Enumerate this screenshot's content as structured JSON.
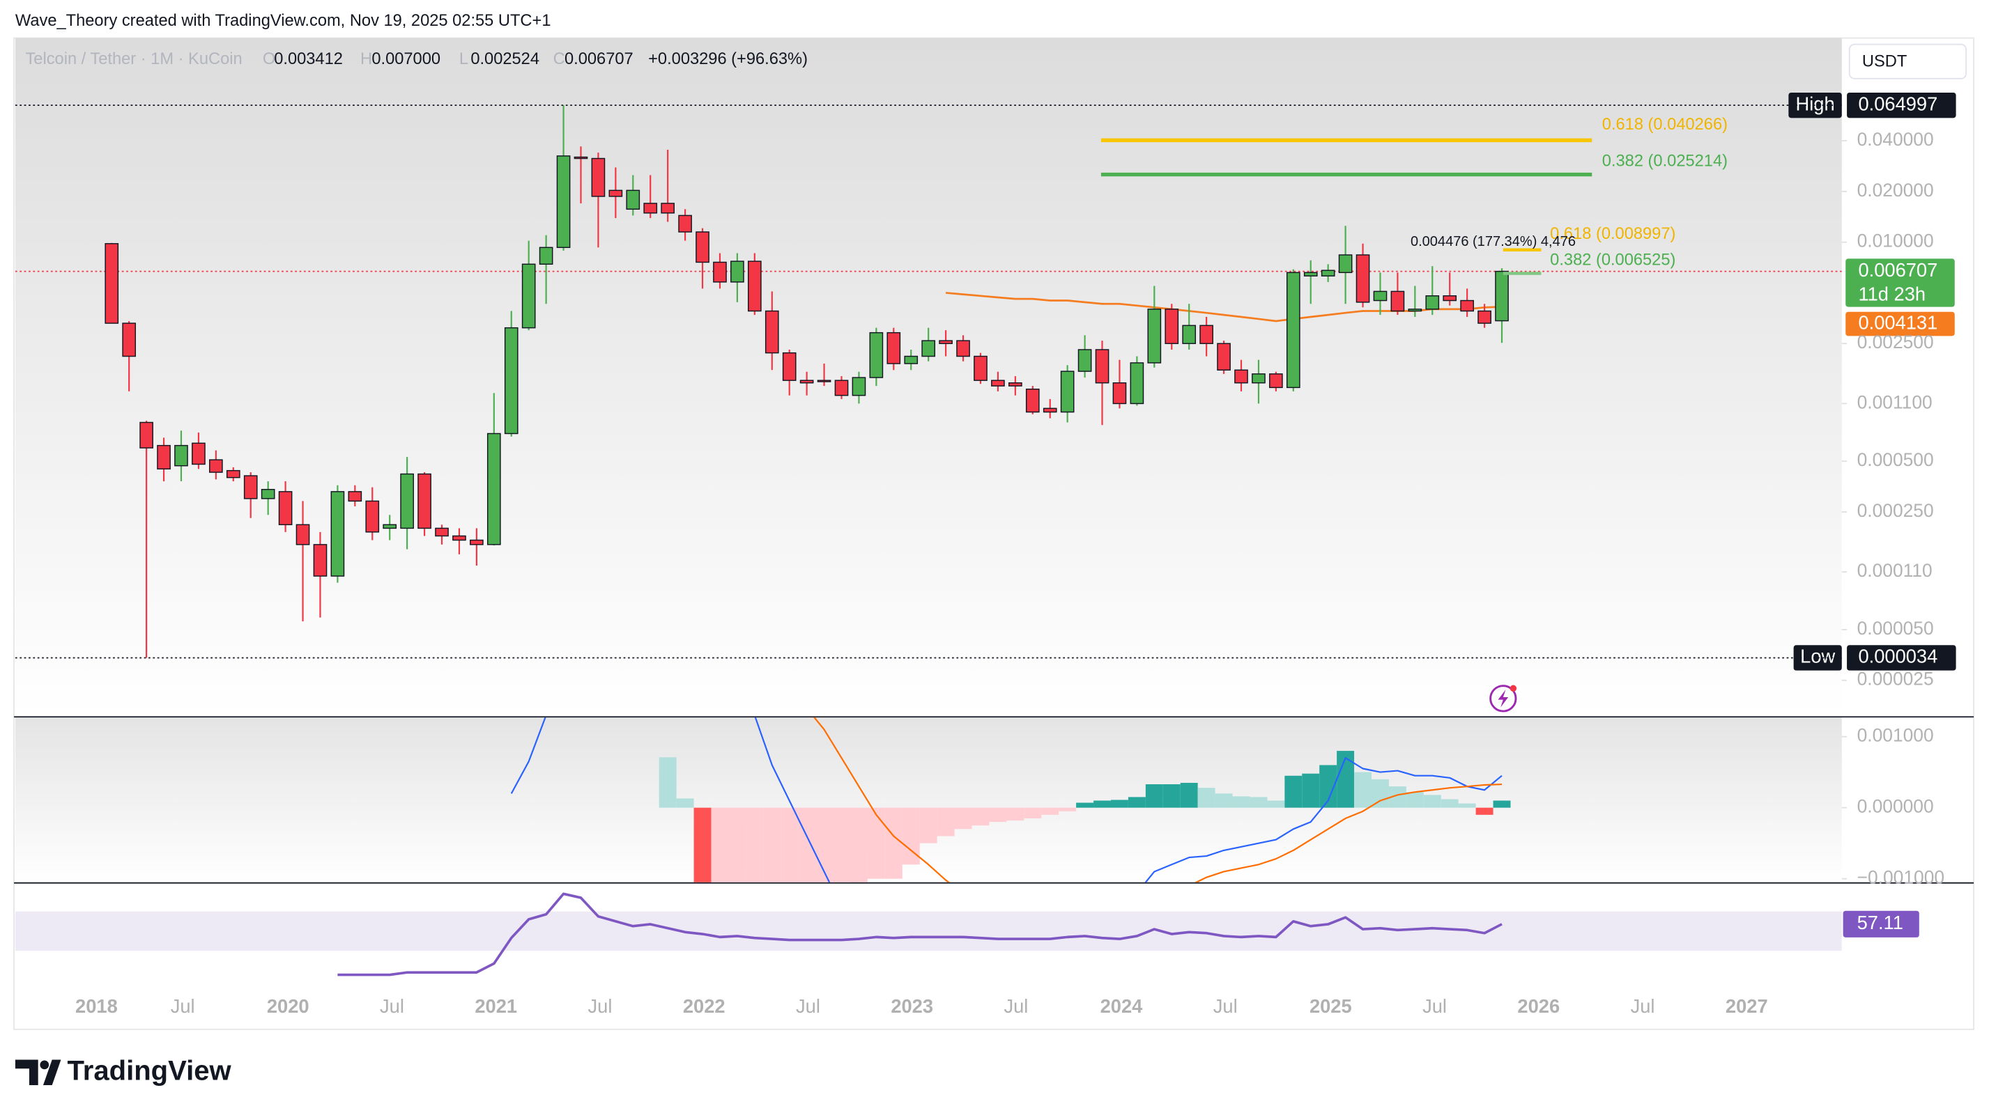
{
  "chart_data": {
    "type": "candlestick",
    "log_scale": true,
    "grid": false,
    "watermark": "Wave_Theory created with TradingView.com, Nov 19, 2025 02:55 UTC+1",
    "legend": {
      "symbol": "Telcoin / Tether · 1M · KuCoin",
      "o_label": "O",
      "o": "0.003412",
      "h_label": "H",
      "h": "0.007000",
      "l_label": "L",
      "l": "0.002524",
      "c_label": "C",
      "c": "0.006707",
      "change": "+0.003296 (+96.63%)"
    },
    "currency": "USDT",
    "up_color": "#4caf50",
    "down_color": "#f23645",
    "open": [
      0.0098,
      0.0033,
      0.00085,
      0.00062,
      0.00047,
      0.00064,
      0.00051,
      0.00044,
      0.00041,
      0.0003,
      0.00033,
      0.00021,
      0.00016,
      0.000104,
      0.00033,
      0.00029,
      0.0002,
      0.0002,
      0.00042,
      0.0002,
      0.00018,
      0.00017,
      0.00016,
      0.00073,
      0.0031,
      0.0074,
      0.0093,
      0.032,
      0.0314,
      0.0203,
      0.0157,
      0.017,
      0.017,
      0.0144,
      0.0115,
      0.0076,
      0.0058,
      0.0077,
      0.0039,
      0.0022,
      0.00151,
      0.00151,
      0.00151,
      0.00123,
      0.00157,
      0.0029,
      0.0019,
      0.0021,
      0.0026,
      0.0026,
      0.0021,
      0.00151,
      0.00146,
      0.00134,
      0.00103,
      0.00098,
      0.00171,
      0.0023,
      0.00146,
      0.0011,
      0.00192,
      0.004,
      0.0025,
      0.0032,
      0.0025,
      0.00174,
      0.00146,
      0.00165,
      0.00137,
      0.0063,
      0.0063,
      0.0066,
      0.0084,
      0.0045,
      0.0051,
      0.0039,
      0.004,
      0.0048,
      0.0045,
      0.0039,
      0.003412
    ],
    "high": [
      0.0099,
      0.0034,
      0.00087,
      0.00069,
      0.00076,
      0.00074,
      0.00058,
      0.00046,
      0.00043,
      0.00038,
      0.00038,
      0.00029,
      0.00019,
      0.00036,
      0.00036,
      0.00035,
      0.00024,
      0.00053,
      0.00043,
      0.00021,
      0.0002,
      0.0002,
      0.00127,
      0.0039,
      0.0102,
      0.011,
      0.064997,
      0.037,
      0.034,
      0.0278,
      0.025,
      0.025,
      0.0354,
      0.0157,
      0.0121,
      0.0086,
      0.0086,
      0.0086,
      0.0051,
      0.0023,
      0.0017,
      0.0019,
      0.0016,
      0.0017,
      0.0031,
      0.0031,
      0.0023,
      0.0031,
      0.003,
      0.0028,
      0.0022,
      0.0017,
      0.0016,
      0.0014,
      0.00117,
      0.00186,
      0.0028,
      0.0026,
      0.002,
      0.0021,
      0.0055,
      0.0043,
      0.0043,
      0.0036,
      0.0026,
      0.002,
      0.002,
      0.0017,
      0.0069,
      0.0078,
      0.0074,
      0.0125,
      0.0098,
      0.0066,
      0.0066,
      0.0055,
      0.0072,
      0.0066,
      0.0053,
      0.0043,
      0.007
    ],
    "low": [
      0.0033,
      0.0013,
      3.4e-05,
      0.00038,
      0.00038,
      0.00045,
      0.00039,
      0.00038,
      0.00023,
      0.00024,
      0.00019,
      5.6e-05,
      5.9e-05,
      9.5e-05,
      0.00027,
      0.00017,
      0.00017,
      0.00015,
      0.00018,
      0.00016,
      0.00014,
      0.00012,
      0.000158,
      0.0007,
      0.003,
      0.0043,
      0.0089,
      0.017,
      0.0093,
      0.0139,
      0.0144,
      0.0139,
      0.0132,
      0.0102,
      0.0053,
      0.0053,
      0.0044,
      0.0037,
      0.00174,
      0.00123,
      0.00123,
      0.0014,
      0.00117,
      0.0011,
      0.0014,
      0.00174,
      0.00174,
      0.00196,
      0.0021,
      0.00196,
      0.00144,
      0.0013,
      0.00123,
      0.00095,
      0.0009,
      0.00085,
      0.00157,
      0.00082,
      0.00103,
      0.00107,
      0.0018,
      0.0023,
      0.0023,
      0.0021,
      0.00165,
      0.0013,
      0.0011,
      0.0013,
      0.0013,
      0.0043,
      0.0058,
      0.0043,
      0.0041,
      0.0037,
      0.0037,
      0.0036,
      0.0037,
      0.0042,
      0.0036,
      0.0031,
      0.002524
    ],
    "close": [
      0.0033,
      0.0021,
      0.0006,
      0.00045,
      0.00062,
      0.00048,
      0.00043,
      0.0004,
      0.0003,
      0.00034,
      0.00021,
      0.00016,
      0.000104,
      0.00033,
      0.00029,
      0.00019,
      0.00021,
      0.00042,
      0.0002,
      0.00018,
      0.00017,
      0.00016,
      0.00073,
      0.0031,
      0.0074,
      0.0093,
      0.0325,
      0.0314,
      0.0187,
      0.0187,
      0.0203,
      0.0149,
      0.0149,
      0.0115,
      0.0076,
      0.0058,
      0.0077,
      0.0039,
      0.0022,
      0.00151,
      0.00146,
      0.00149,
      0.00123,
      0.00157,
      0.0029,
      0.0019,
      0.0021,
      0.0026,
      0.0025,
      0.0021,
      0.00151,
      0.0014,
      0.0014,
      0.00098,
      0.00098,
      0.00171,
      0.0023,
      0.00146,
      0.0011,
      0.00192,
      0.004,
      0.0025,
      0.0032,
      0.0025,
      0.00174,
      0.00146,
      0.00165,
      0.00137,
      0.0066,
      0.0066,
      0.0068,
      0.0084,
      0.0044,
      0.0051,
      0.0039,
      0.004,
      0.0048,
      0.0045,
      0.0039,
      0.0033,
      0.006707
    ],
    "countdown": "11d 23h",
    "ylim": [
      1.53e-05,
      0.163
    ],
    "yticks": [
      {
        "value": 0.04,
        "label": "0.040000"
      },
      {
        "value": 0.02,
        "label": "0.020000"
      },
      {
        "value": 0.01,
        "label": "0.010000"
      },
      {
        "value": 0.0025,
        "label": "0.002500"
      },
      {
        "value": 0.0011,
        "label": "0.001100"
      },
      {
        "value": 0.0005,
        "label": "0.000500"
      },
      {
        "value": 0.00025,
        "label": "0.000250"
      },
      {
        "value": 0.00011,
        "label": "0.000110"
      },
      {
        "value": 5e-05,
        "label": "0.000050"
      },
      {
        "value": 2.5e-05,
        "label": "0.000025"
      }
    ],
    "x_axis_labels": [
      "2018",
      "Jul",
      "2020",
      "Jul",
      "2021",
      "Jul",
      "2022",
      "Jul",
      "2023",
      "Jul",
      "2024",
      "Jul",
      "2025",
      "Jul",
      "2026",
      "Jul",
      "2027"
    ],
    "high_marker": {
      "label": "High",
      "value": 0.064997
    },
    "low_marker": {
      "label": "Low",
      "value": 3.4e-05
    },
    "ema": {
      "color": "#f57c1f",
      "values": [
        null,
        null,
        null,
        null,
        null,
        null,
        null,
        null,
        null,
        null,
        null,
        null,
        null,
        null,
        null,
        null,
        null,
        null,
        null,
        null,
        null,
        null,
        null,
        null,
        null,
        null,
        null,
        null,
        null,
        null,
        null,
        null,
        null,
        null,
        null,
        null,
        null,
        null,
        null,
        null,
        null,
        null,
        null,
        null,
        null,
        null,
        null,
        null,
        0.005,
        0.0049,
        0.0048,
        0.0047,
        0.0046,
        0.0046,
        0.0045,
        0.0045,
        0.0044,
        0.0043,
        0.0043,
        0.0042,
        0.0041,
        0.004,
        0.0039,
        0.0038,
        0.0037,
        0.0036,
        0.0035,
        0.0034,
        0.0035,
        0.0036,
        0.0037,
        0.0038,
        0.0039,
        0.0039,
        0.0039,
        0.0039,
        0.004,
        0.004,
        0.004,
        0.0041,
        0.004131
      ]
    },
    "fib_levels": [
      {
        "label": "0.618 (0.040266)",
        "value": 0.040266,
        "color": "#f7c600",
        "text_color": "#f0b400"
      },
      {
        "label": "0.382 (0.025214)",
        "value": 0.025214,
        "color": "#4caf50",
        "text_color": "#4caf50"
      }
    ],
    "fib_levels_small": [
      {
        "label": "0.618 (0.008997)",
        "value": 0.008997,
        "color": "#f7c600",
        "text_color": "#f0b400"
      },
      {
        "label": "0.382 (0.006525)",
        "value": 0.006525,
        "color": "#81c784",
        "text_color": "#4caf50"
      }
    ],
    "measure_label": "0.004476 (177.34%) 4,476",
    "macd": {
      "ylim": [
        -0.00105,
        0.00127
      ],
      "yticks": [
        {
          "value": 0.001,
          "label": "0.001000"
        },
        {
          "value": 0,
          "label": "0.000000"
        },
        {
          "value": -0.001,
          "label": "−0.001000"
        }
      ],
      "histogram_colors": {
        "up_rising": "#26a69a",
        "up_falling": "#b2dfdb",
        "down_falling": "#ff5252",
        "down_rising": "#ffcdd2"
      },
      "macd_color": "#2962ff",
      "signal_color": "#ff6d00",
      "histogram": [
        null,
        null,
        null,
        null,
        null,
        null,
        null,
        null,
        null,
        null,
        null,
        null,
        null,
        null,
        null,
        null,
        null,
        null,
        null,
        null,
        null,
        null,
        null,
        null,
        null,
        null,
        null,
        null,
        null,
        null,
        null,
        null,
        0.00071,
        0.00013,
        -0.0013,
        -0.0013,
        -0.0013,
        -0.0013,
        -0.0013,
        -0.0013,
        -0.0012,
        -0.0011,
        -0.0011,
        -0.00105,
        -0.001,
        -0.001,
        -0.0008,
        -0.0005,
        -0.0004,
        -0.0003,
        -0.00025,
        -0.0002,
        -0.00018,
        -0.00015,
        -0.0001,
        -5e-05,
        7e-05,
        0.0001,
        0.00011,
        0.00015,
        0.00033,
        0.00033,
        0.00035,
        0.00028,
        0.0002,
        0.00016,
        0.00015,
        0.0001,
        0.00045,
        0.00048,
        0.0006,
        0.0008,
        0.0005,
        0.0004,
        0.0003,
        0.00022,
        0.00018,
        0.00012,
        6e-05,
        -0.0001,
        0.0001
      ],
      "macd": [
        null,
        null,
        null,
        null,
        null,
        null,
        null,
        null,
        null,
        null,
        null,
        null,
        null,
        null,
        null,
        null,
        null,
        null,
        null,
        null,
        null,
        null,
        null,
        0.0002,
        0.00065,
        0.0013,
        0.0025,
        0.0032,
        0.0034,
        0.0033,
        0.0031,
        0.0029,
        0.0026,
        0.0023,
        0.002,
        0.0017,
        0.0015,
        0.0013,
        0.0006,
        0.0001,
        -0.0004,
        -0.0009,
        -0.0014,
        -0.0017,
        -0.0019,
        -0.002,
        -0.0021,
        -0.0021,
        -0.0021,
        -0.0021,
        -0.0021,
        -0.002,
        -0.002,
        -0.0019,
        -0.0018,
        -0.0017,
        -0.0016,
        -0.0015,
        -0.0013,
        -0.0012,
        -0.0009,
        -0.0008,
        -0.0007,
        -0.00068,
        -0.0006,
        -0.00055,
        -0.0005,
        -0.00045,
        -0.0003,
        -0.0002,
        0.0001,
        0.0007,
        0.00055,
        0.0005,
        0.00052,
        0.00045,
        0.00045,
        0.00042,
        0.0003,
        0.00025,
        0.00045
      ],
      "signal": [
        null,
        null,
        null,
        null,
        null,
        null,
        null,
        null,
        null,
        null,
        null,
        null,
        null,
        null,
        null,
        null,
        null,
        null,
        null,
        null,
        null,
        null,
        null,
        null,
        null,
        null,
        null,
        null,
        null,
        null,
        0.0027,
        0.0027,
        0.0026,
        0.0025,
        0.0024,
        0.0022,
        0.0019,
        0.0017,
        0.0015,
        0.0013,
        0.0014,
        0.0011,
        0.0007,
        0.0003,
        -0.0001,
        -0.0004,
        -0.0006,
        -0.0008,
        -0.00102,
        -0.0012,
        -0.0014,
        -0.0015,
        -0.0016,
        -0.0016,
        -0.0017,
        -0.0017,
        -0.0017,
        -0.0016,
        -0.0015,
        -0.0014,
        -0.0013,
        -0.0012,
        -0.0011,
        -0.00098,
        -0.0009,
        -0.00085,
        -0.0008,
        -0.00072,
        -0.0006,
        -0.00045,
        -0.0003,
        -0.00015,
        -5e-05,
        0.0001,
        0.00018,
        0.00022,
        0.00025,
        0.00028,
        0.0003,
        0.00032,
        0.00033
      ]
    },
    "rsi": {
      "color": "#7e57c2",
      "band": [
        30,
        70
      ],
      "ylim": [
        -8.7,
        98.4
      ],
      "values": [
        null,
        null,
        null,
        null,
        null,
        null,
        null,
        null,
        null,
        null,
        null,
        null,
        null,
        5.5,
        5.5,
        5.5,
        5.5,
        8,
        8,
        8,
        8,
        8,
        17,
        43,
        62,
        67,
        88,
        84,
        65,
        60,
        55,
        57,
        53,
        49,
        47,
        44,
        45,
        43,
        42,
        41,
        41,
        41,
        41,
        42,
        44,
        43,
        44,
        44,
        44,
        44,
        43,
        42,
        42,
        42,
        42,
        44,
        45,
        43,
        42,
        45,
        52,
        47,
        49,
        48,
        45,
        44,
        45,
        44,
        60,
        55,
        57,
        64,
        52,
        53,
        51,
        52,
        53,
        52,
        51,
        48,
        57.11
      ]
    },
    "brand": "TradingView"
  }
}
